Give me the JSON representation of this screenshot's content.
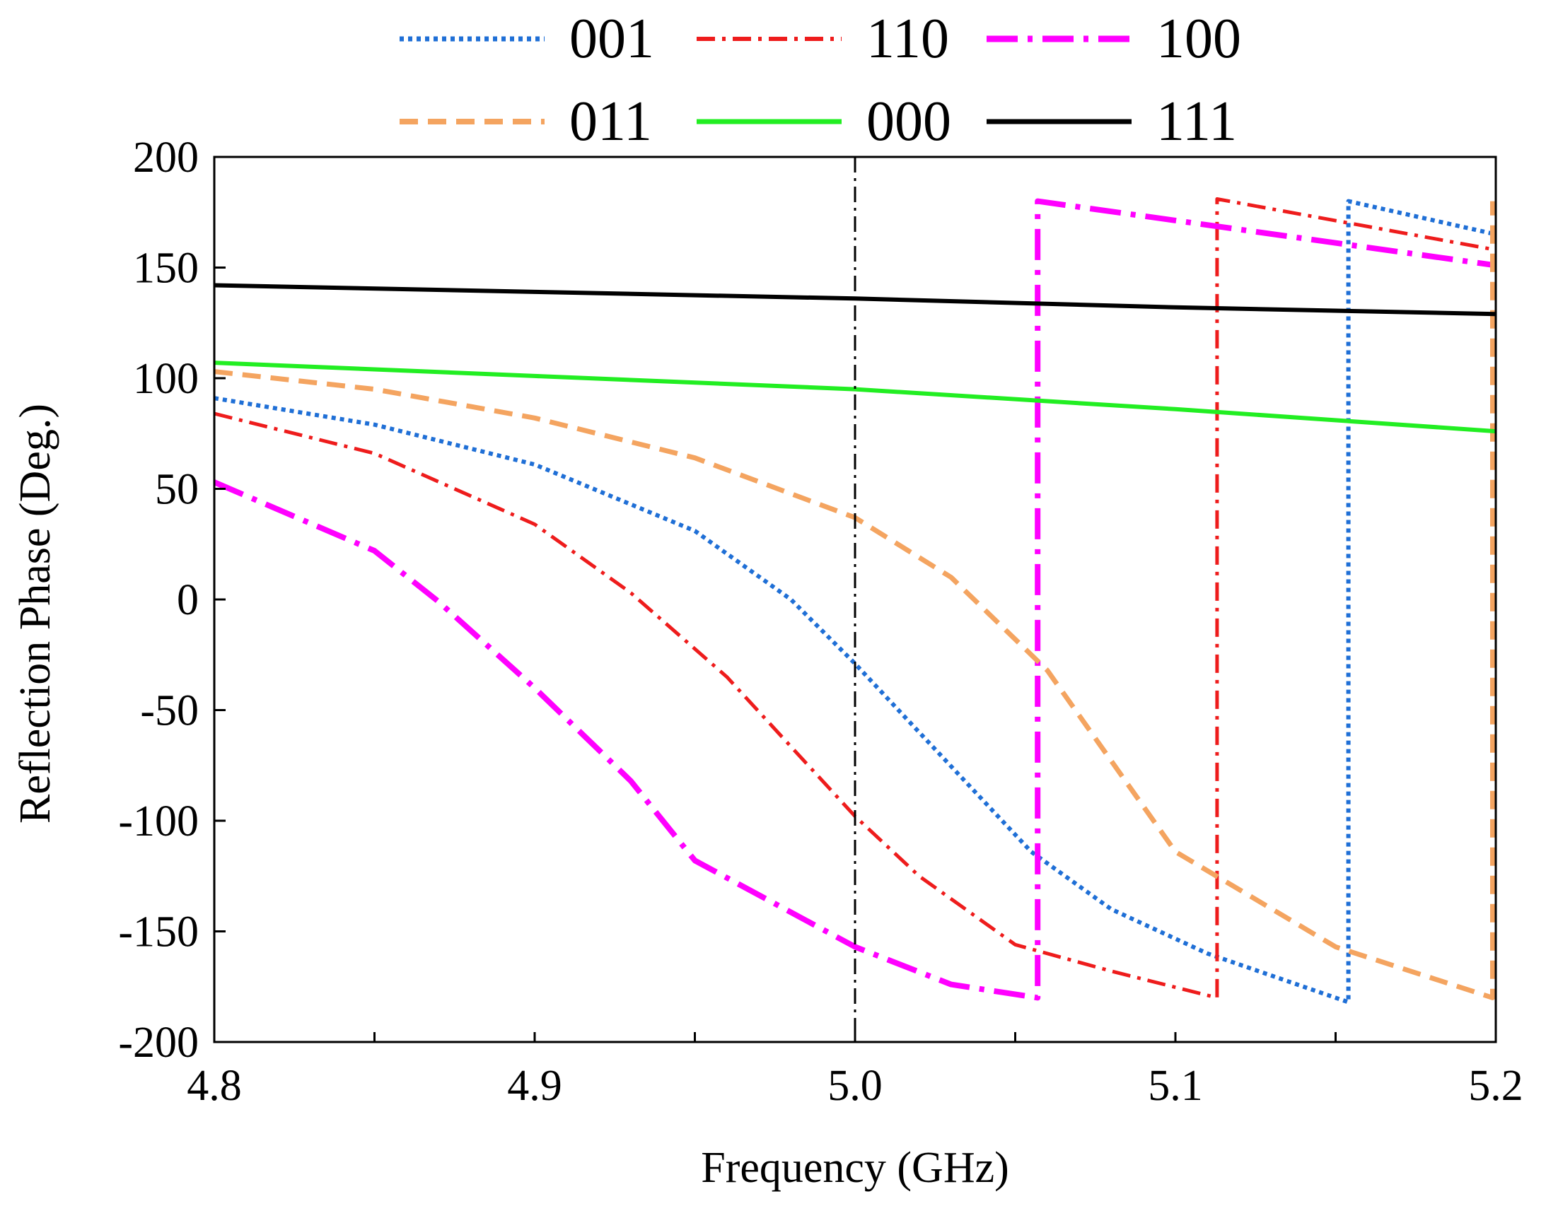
{
  "chart_data": {
    "type": "line",
    "title": "",
    "xlabel": "Frequency (GHz)",
    "ylabel": "Reflection Phase (Deg.)",
    "xlim": [
      4.8,
      5.2
    ],
    "ylim": [
      -200,
      200
    ],
    "xticks": [
      4.8,
      4.85,
      4.9,
      4.95,
      5.0,
      5.05,
      5.1,
      5.15,
      5.2
    ],
    "xtick_labels": [
      "4.8",
      "4.9",
      "5.0",
      "5.1",
      "5.2"
    ],
    "xtick_label_values": [
      4.8,
      4.9,
      5.0,
      5.1,
      5.2
    ],
    "yticks": [
      -200,
      -150,
      -100,
      -50,
      0,
      50,
      100,
      150,
      200
    ],
    "ytick_labels": [
      "-200",
      "-150",
      "-100",
      "-50",
      "0",
      "50",
      "100",
      "150",
      "200"
    ],
    "grid": false,
    "legend_position": "top, above plot, two rows",
    "reference_line": {
      "x": 5.0,
      "style": "dash-dot",
      "color": "#000000"
    },
    "series": [
      {
        "name": "001",
        "color": "#1f6fd6",
        "style": "dotted",
        "x": [
          4.8,
          4.85,
          4.9,
          4.95,
          4.98,
          5.0,
          5.02,
          5.055,
          5.08,
          5.11,
          5.154,
          5.154,
          5.2
        ],
        "y": [
          91,
          79,
          61,
          31,
          0,
          -29,
          -60,
          -114,
          -140,
          -160,
          -182,
          180,
          165
        ]
      },
      {
        "name": "110",
        "color": "#ee1c1c",
        "style": "dash-dot",
        "x": [
          4.8,
          4.85,
          4.9,
          4.93,
          4.96,
          5.0,
          5.02,
          5.05,
          5.08,
          5.113,
          5.113,
          5.2
        ],
        "y": [
          84,
          66,
          34,
          3,
          -35,
          -98,
          -125,
          -156,
          -168,
          -180,
          181,
          158
        ]
      },
      {
        "name": "100",
        "color": "#ff00ff",
        "style": "long-dash-dot",
        "x": [
          4.8,
          4.85,
          4.87,
          4.9,
          4.93,
          4.95,
          5.0,
          5.03,
          5.057,
          5.057,
          5.2
        ],
        "y": [
          53,
          22,
          -1,
          -40,
          -82,
          -118,
          -157,
          -174,
          -180,
          180,
          151
        ]
      },
      {
        "name": "011",
        "color": "#f4a460",
        "style": "dashed",
        "x": [
          4.8,
          4.85,
          4.9,
          4.95,
          5.0,
          5.03,
          5.06,
          5.1,
          5.15,
          5.199,
          5.199
        ],
        "y": [
          103,
          95,
          82,
          64,
          37,
          10,
          -32,
          -114,
          -157,
          -180,
          180
        ]
      },
      {
        "name": "000",
        "color": "#22ee22",
        "style": "solid",
        "x": [
          4.8,
          4.9,
          5.0,
          5.1,
          5.2
        ],
        "y": [
          107,
          101,
          95,
          86,
          76
        ]
      },
      {
        "name": "111",
        "color": "#000000",
        "style": "solid",
        "x": [
          4.8,
          4.9,
          5.0,
          5.1,
          5.2
        ],
        "y": [
          142,
          139,
          136,
          132,
          129
        ]
      }
    ]
  }
}
